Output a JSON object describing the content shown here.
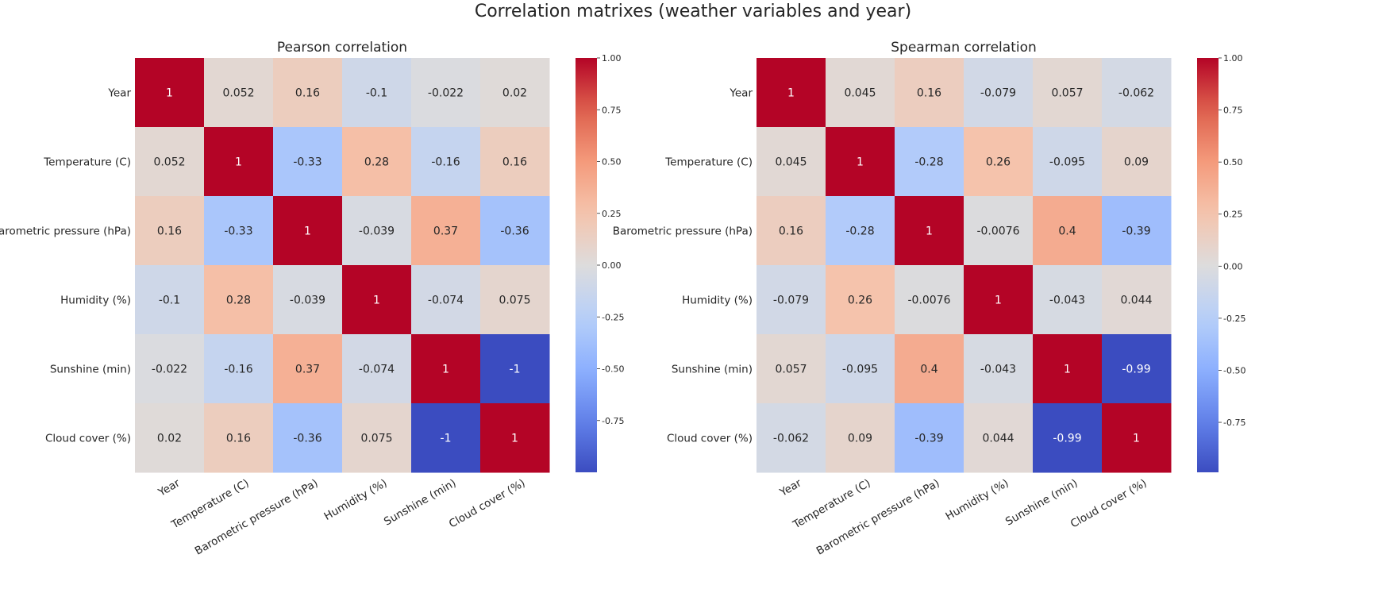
{
  "suptitle": "Correlation matrixes (weather variables and year)",
  "chart_data": [
    {
      "type": "heatmap",
      "title": "Pearson correlation",
      "labels": [
        "Year",
        "Temperature (C)",
        "Barometric pressure (hPa)",
        "Humidity (%)",
        "Sunshine (min)",
        "Cloud cover (%)"
      ],
      "values": [
        [
          1,
          0.052,
          0.16,
          -0.1,
          -0.022,
          0.02
        ],
        [
          0.052,
          1,
          -0.33,
          0.28,
          -0.16,
          0.16
        ],
        [
          0.16,
          -0.33,
          1,
          -0.039,
          0.37,
          -0.36
        ],
        [
          -0.1,
          0.28,
          -0.039,
          1,
          -0.074,
          0.075
        ],
        [
          -0.022,
          -0.16,
          0.37,
          -0.074,
          1,
          -1
        ],
        [
          0.02,
          0.16,
          -0.36,
          0.075,
          -1,
          1
        ]
      ],
      "colorbar_ticks": [
        "1.00",
        "0.75",
        "0.50",
        "0.25",
        "0.00",
        "-0.25",
        "-0.50",
        "-0.75"
      ],
      "colorbar_tick_values": [
        1.0,
        0.75,
        0.5,
        0.25,
        0.0,
        -0.25,
        -0.5,
        -0.75
      ],
      "vmin": -1,
      "vmax": 1,
      "colormap": "coolwarm"
    },
    {
      "type": "heatmap",
      "title": "Spearman correlation",
      "labels": [
        "Year",
        "Temperature (C)",
        "Barometric pressure (hPa)",
        "Humidity (%)",
        "Sunshine (min)",
        "Cloud cover (%)"
      ],
      "values": [
        [
          1,
          0.045,
          0.16,
          -0.079,
          0.057,
          -0.062
        ],
        [
          0.045,
          1,
          -0.28,
          0.26,
          -0.095,
          0.09
        ],
        [
          0.16,
          -0.28,
          1,
          -0.0076,
          0.4,
          -0.39
        ],
        [
          -0.079,
          0.26,
          -0.0076,
          1,
          -0.043,
          0.044
        ],
        [
          0.057,
          -0.095,
          0.4,
          -0.043,
          1,
          -0.99
        ],
        [
          -0.062,
          0.09,
          -0.39,
          0.044,
          -0.99,
          1
        ]
      ],
      "colorbar_ticks": [
        "1.00",
        "0.75",
        "0.50",
        "0.25",
        "0.00",
        "-0.25",
        "-0.50",
        "-0.75"
      ],
      "colorbar_tick_values": [
        1.0,
        0.75,
        0.5,
        0.25,
        0.0,
        -0.25,
        -0.5,
        -0.75
      ],
      "vmin": -0.99,
      "vmax": 1,
      "colormap": "coolwarm"
    }
  ]
}
